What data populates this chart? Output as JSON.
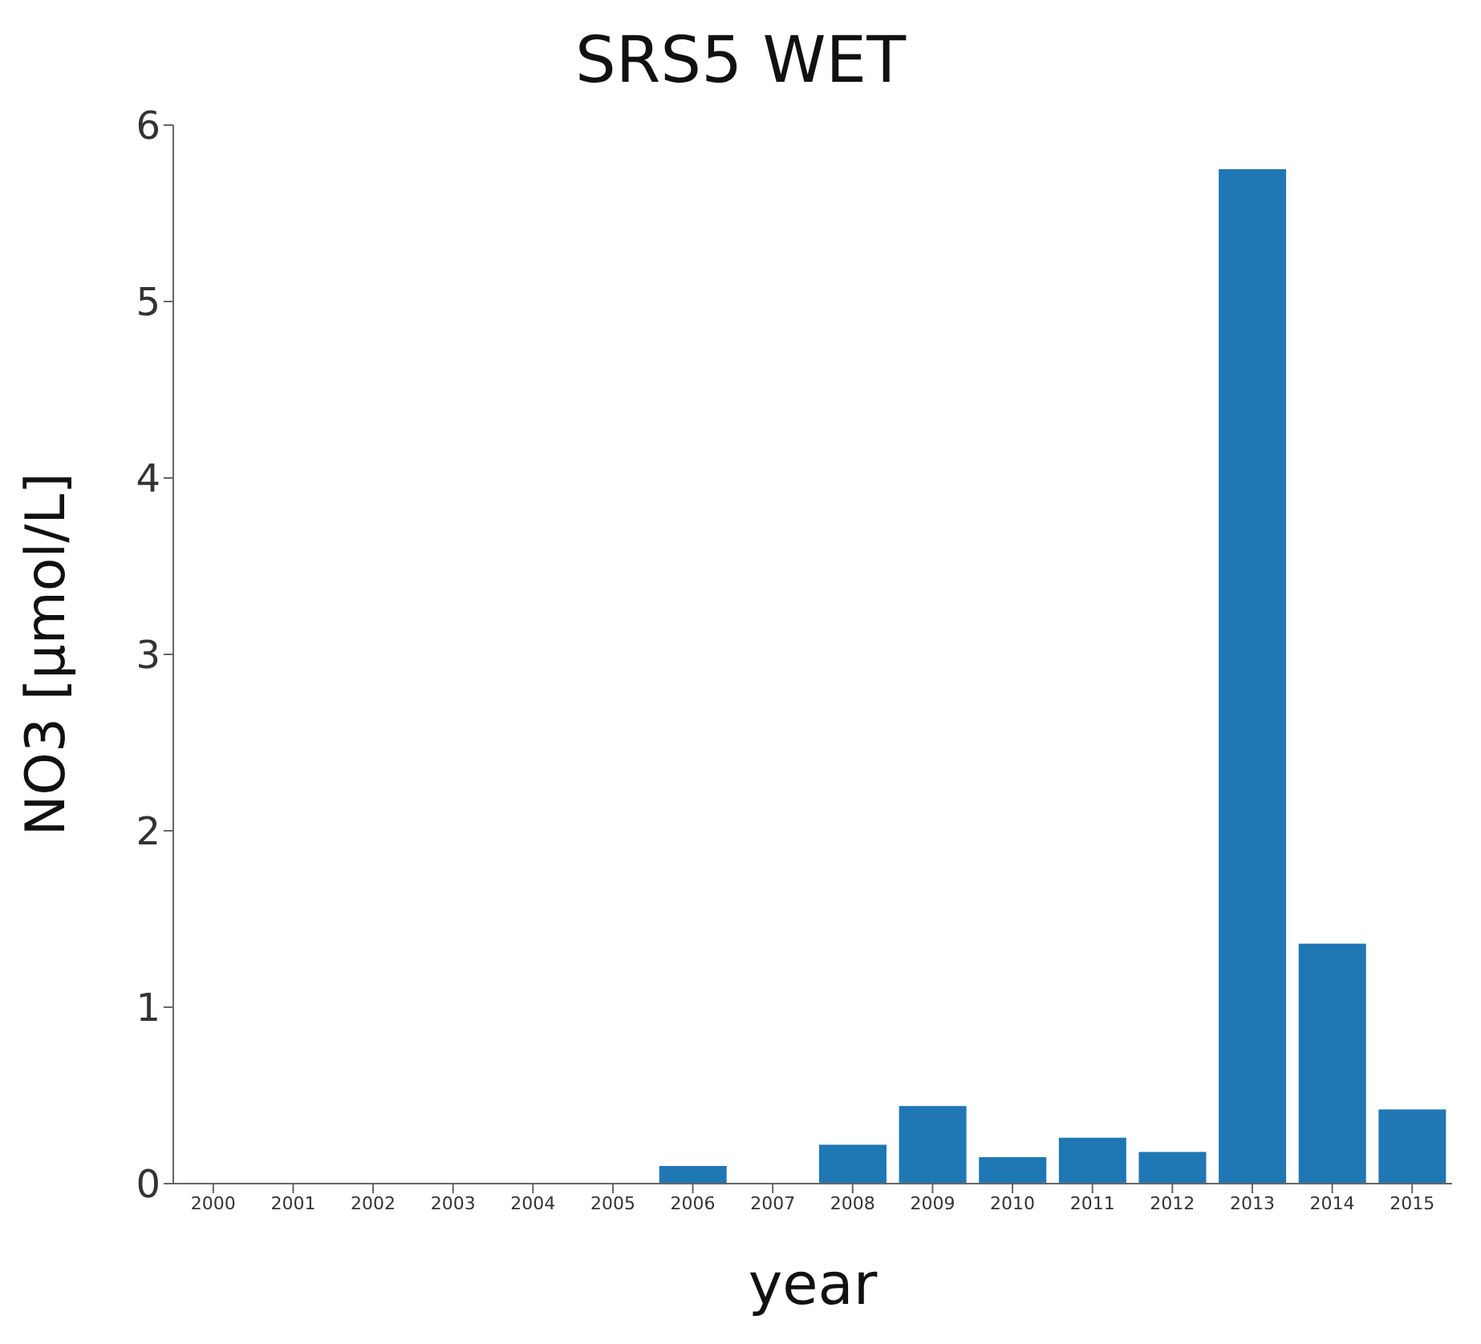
{
  "chart_data": {
    "type": "bar",
    "title": "SRS5 WET",
    "xlabel": "year",
    "ylabel": "NO3 [μmol/L]",
    "categories": [
      "2000",
      "2001",
      "2002",
      "2003",
      "2004",
      "2005",
      "2006",
      "2007",
      "2008",
      "2009",
      "2010",
      "2011",
      "2012",
      "2013",
      "2014",
      "2015"
    ],
    "values": [
      0,
      0,
      0,
      0,
      0,
      0,
      0.1,
      0,
      0.22,
      0.44,
      0.15,
      0.26,
      0.18,
      5.75,
      1.36,
      0.42
    ],
    "color": "#1f77b4",
    "ylim": [
      0,
      6
    ],
    "yticks": [
      0,
      1,
      2,
      3,
      4,
      5,
      6
    ],
    "grid": false,
    "legend": false
  }
}
